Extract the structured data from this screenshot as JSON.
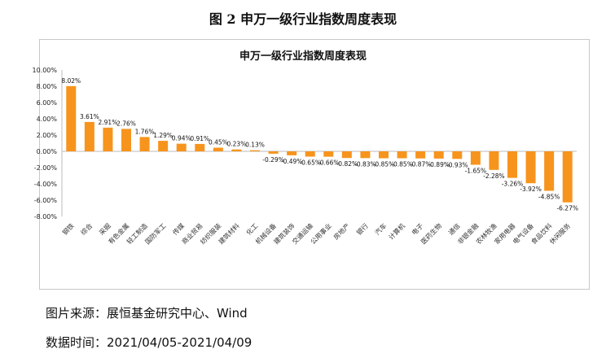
{
  "figure_title": "图 2  申万一级行业指数周度表现",
  "source": "图片来源：展恒基金研究中心、Wind",
  "data_time": "数据时间：2021/04/05-2021/04/09",
  "chart_data": {
    "type": "bar",
    "title": "申万一级行业指数周度表现",
    "categories": [
      "钢铁",
      "综合",
      "采掘",
      "有色金属",
      "轻工制造",
      "国防军工",
      "传媒",
      "商业贸易",
      "纺织服装",
      "建筑材料",
      "化工",
      "机械设备",
      "建筑装饰",
      "交通运输",
      "公用事业",
      "房地产",
      "银行",
      "汽车",
      "计算机",
      "电子",
      "医药生物",
      "通信",
      "非银金融",
      "农林牧渔",
      "家用电器",
      "电气设备",
      "食品饮料",
      "休闲服务"
    ],
    "values": [
      8.02,
      3.61,
      2.91,
      2.76,
      1.76,
      1.29,
      0.94,
      0.91,
      0.45,
      0.23,
      0.13,
      -0.29,
      -0.49,
      -0.65,
      -0.66,
      -0.82,
      -0.83,
      -0.85,
      -0.85,
      -0.87,
      -0.89,
      -0.93,
      -1.65,
      -2.28,
      -3.26,
      -3.92,
      -4.85,
      -6.27
    ],
    "unit": "%",
    "ylim": [
      -8,
      10
    ],
    "yticks": [
      "10.00%",
      "8.00%",
      "6.00%",
      "4.00%",
      "2.00%",
      "0.00%",
      "-2.00%",
      "-4.00%",
      "-6.00%",
      "-8.00%"
    ],
    "grid": false,
    "bar_color": "#F7941D"
  }
}
